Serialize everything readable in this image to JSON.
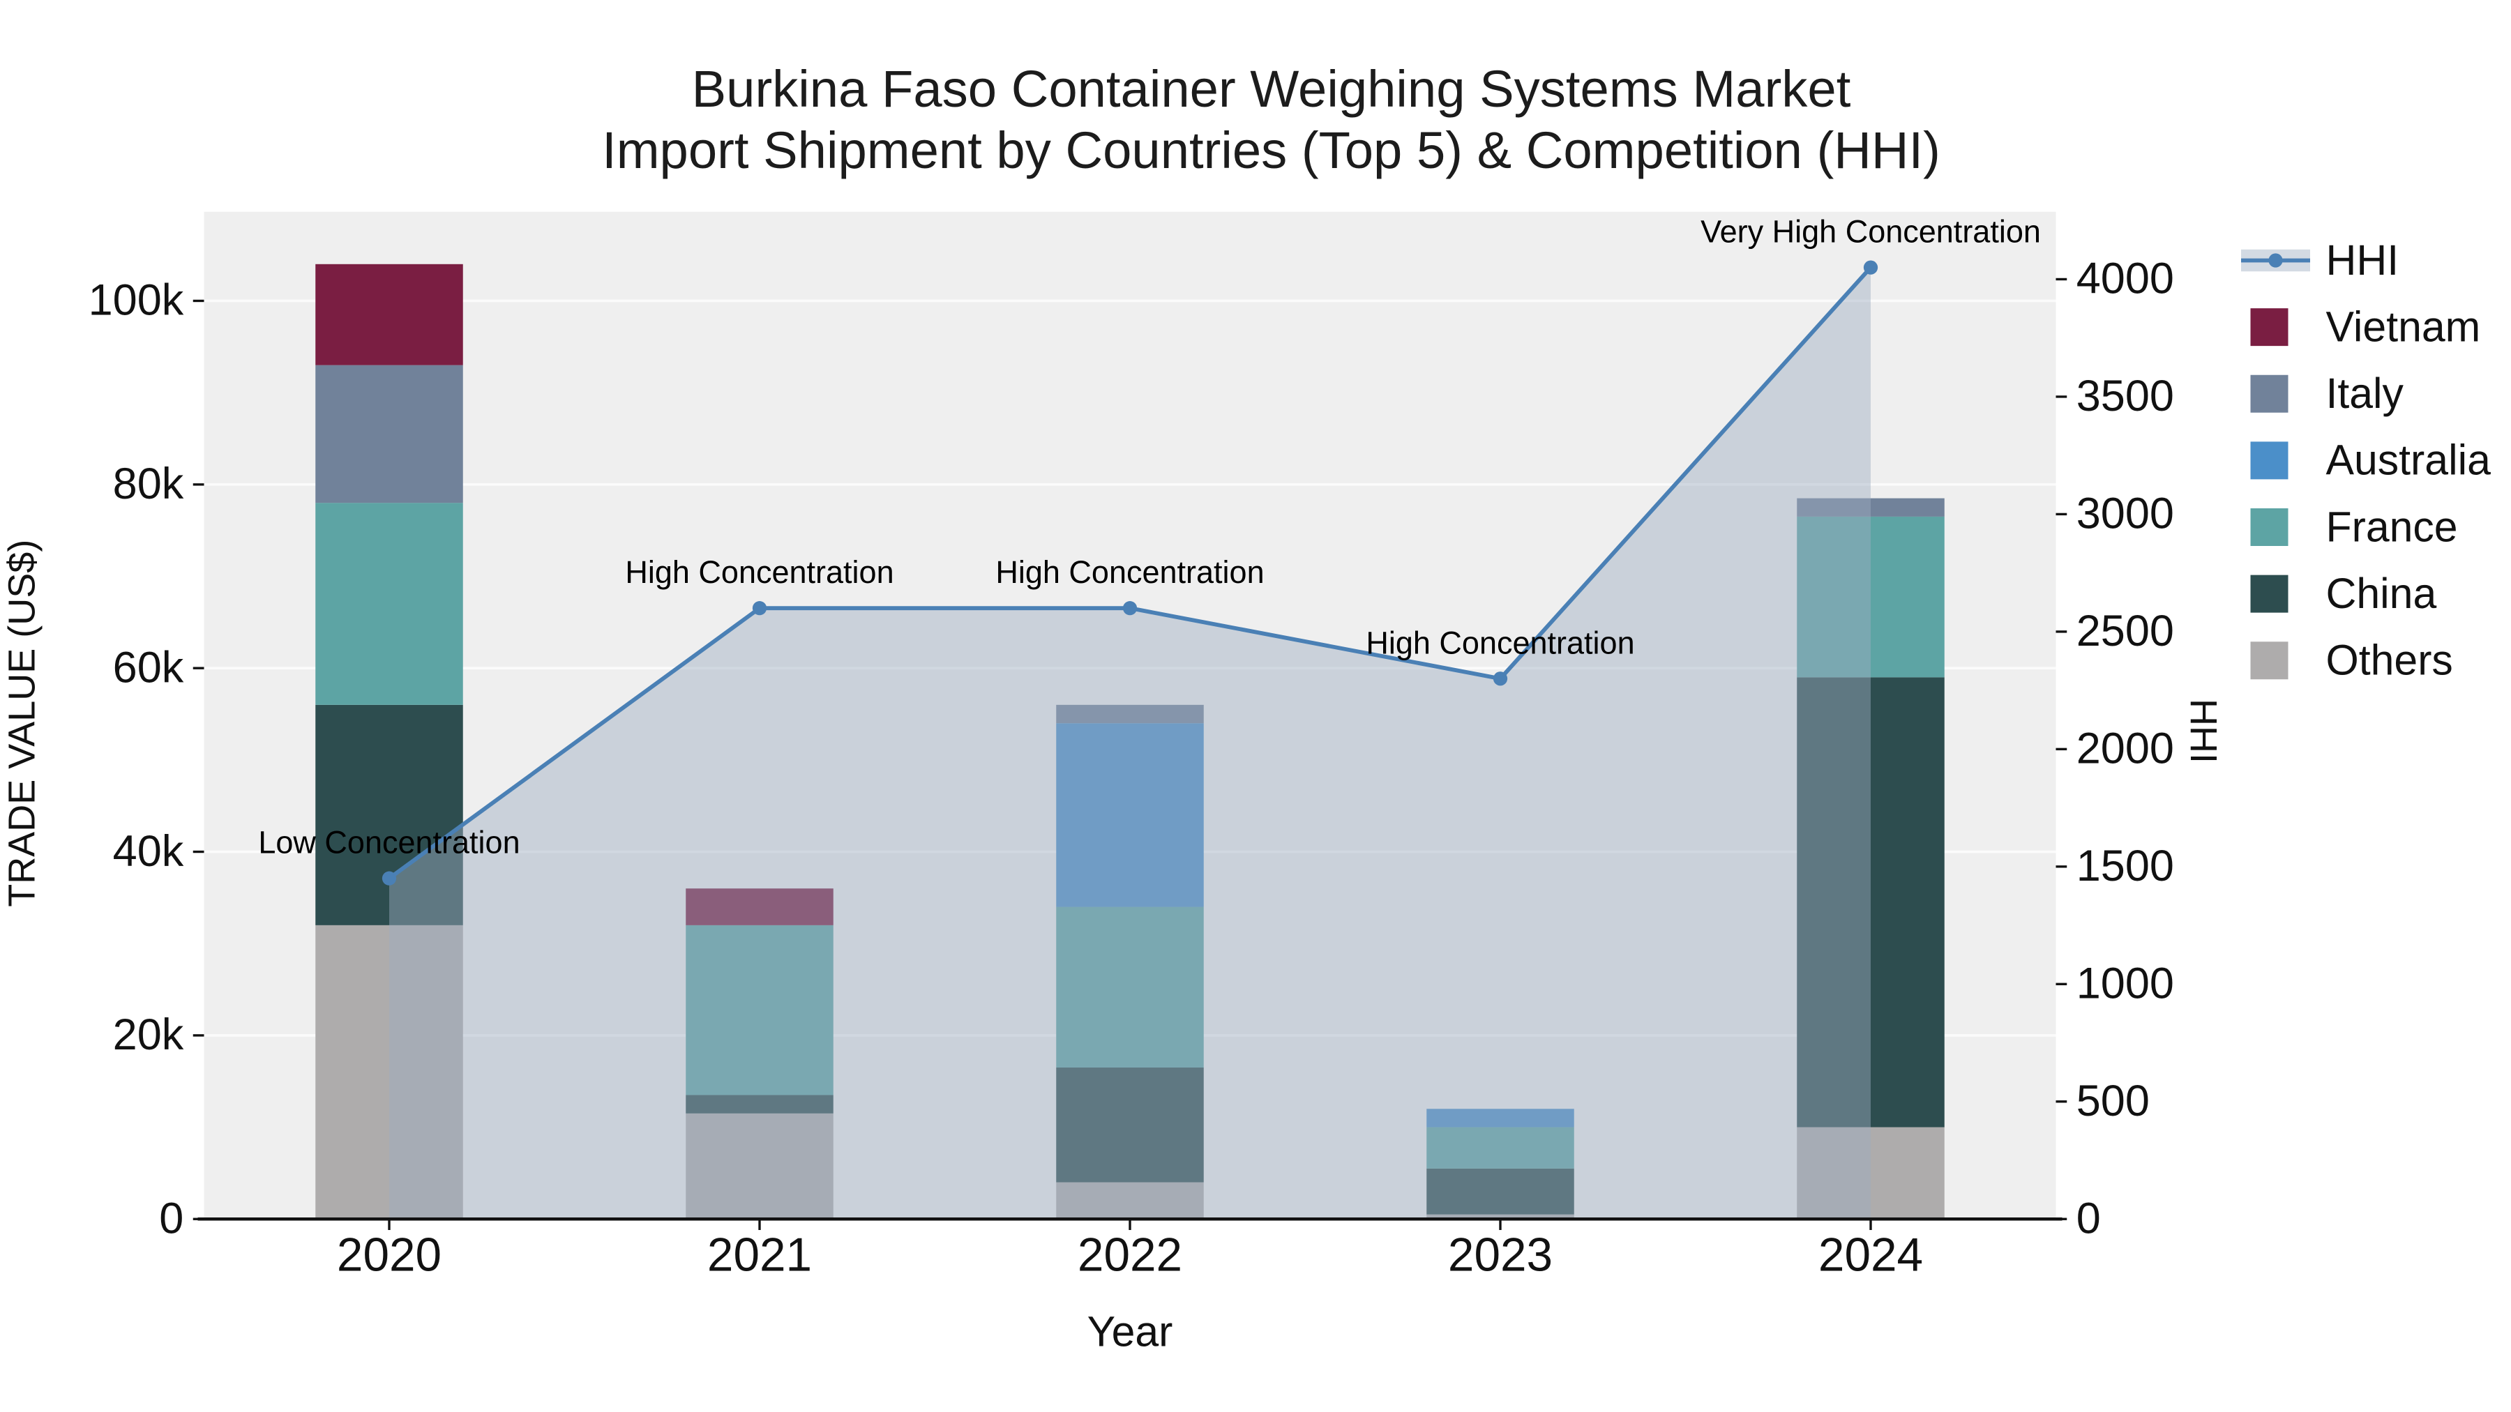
{
  "chart_data": {
    "type": "bar",
    "combo": "stacked-bar + line-area (secondary axis)",
    "title": "Burkina Faso Container Weighing Systems Market",
    "subtitle": "Import Shipment by Countries (Top 5) & Competition (HHI)",
    "xlabel": "Year",
    "ylabel_left": "TRADE VALUE (US$)",
    "ylabel_right": "HHI",
    "categories": [
      "2020",
      "2021",
      "2022",
      "2023",
      "2024"
    ],
    "series": [
      {
        "name": "Others",
        "color": "#aeacac",
        "values": [
          32000,
          11500,
          4000,
          500,
          10000
        ]
      },
      {
        "name": "China",
        "color": "#2d4d4f",
        "values": [
          24000,
          2000,
          12500,
          5000,
          49000
        ]
      },
      {
        "name": "France",
        "color": "#5da4a4",
        "values": [
          22000,
          18500,
          17500,
          4500,
          17500
        ]
      },
      {
        "name": "Australia",
        "color": "#4b8fc9",
        "values": [
          0,
          0,
          20000,
          2000,
          0
        ]
      },
      {
        "name": "Italy",
        "color": "#71829a",
        "values": [
          15000,
          0,
          2000,
          0,
          2000
        ]
      },
      {
        "name": "Vietnam",
        "color": "#7a1e42",
        "values": [
          11000,
          4000,
          0,
          0,
          0
        ]
      }
    ],
    "bar_totals": [
      104000,
      36000,
      56000,
      12000,
      78500
    ],
    "hhi": {
      "name": "HHI",
      "line_color": "#4a80b5",
      "area_color": "rgba(158,173,192,0.45)",
      "values": [
        1450,
        2600,
        2600,
        2300,
        4050
      ]
    },
    "annotations": [
      "Low Concentration",
      "High Concentration",
      "High Concentration",
      "High Concentration",
      "Very High Concentration"
    ],
    "left_axis": {
      "ticks": [
        0,
        20000,
        40000,
        60000,
        80000,
        100000
      ],
      "tick_labels": [
        "0",
        "20k",
        "40k",
        "60k",
        "80k",
        "100k"
      ],
      "range": [
        0,
        109700
      ]
    },
    "right_axis": {
      "ticks": [
        0,
        500,
        1000,
        1500,
        2000,
        2500,
        3000,
        3500,
        4000
      ],
      "tick_labels": [
        "0",
        "500",
        "1000",
        "1500",
        "2000",
        "2500",
        "3000",
        "3500",
        "4000"
      ],
      "range": [
        0,
        4287
      ]
    },
    "legend": [
      "HHI",
      "Vietnam",
      "Italy",
      "Australia",
      "France",
      "China",
      "Others"
    ],
    "legend_position": "right",
    "grid": true,
    "plot_bg": "#efefef",
    "grid_color": "#fbfbfb",
    "text_color": "#1c1c1c"
  }
}
